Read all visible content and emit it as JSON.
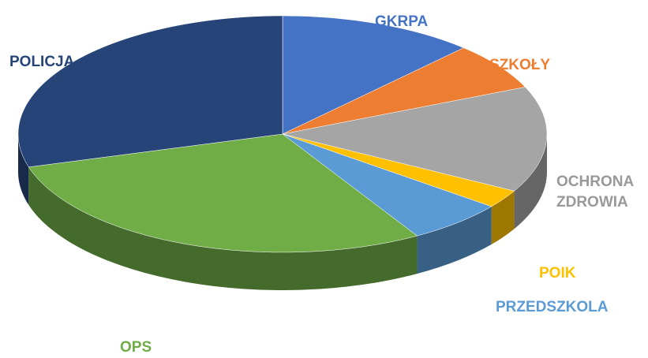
{
  "chart_data": {
    "type": "pie",
    "categories": [
      "GKRPA",
      "SZKOŁY",
      "OCHRONA ZDROWIA",
      "POIK",
      "PRZEDSZKOLA",
      "OPS",
      "POLICJA"
    ],
    "values": [
      12,
      6.5,
      14.5,
      2.5,
      6,
      29,
      29.5
    ],
    "colors": [
      "#4472c4",
      "#ed7d31",
      "#a5a5a5",
      "#ffc000",
      "#5b9bd5",
      "#70ad47",
      "#264478"
    ]
  }
}
